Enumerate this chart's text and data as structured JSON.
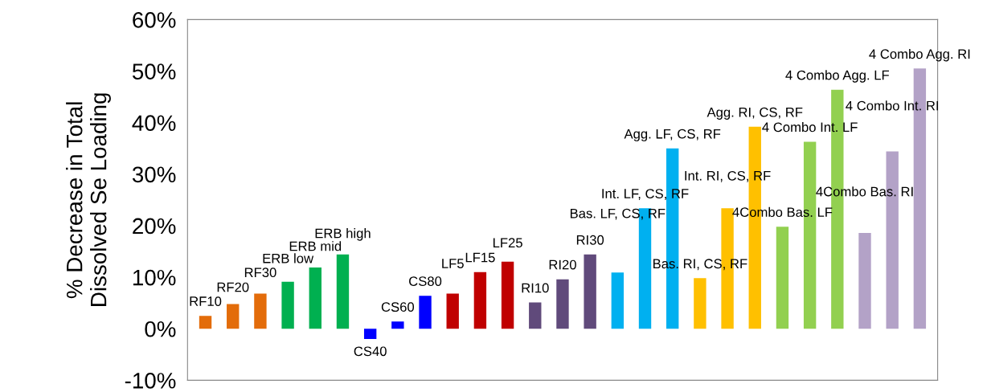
{
  "chart_data": {
    "type": "bar",
    "ylabel": "% Decrease in Total\nDissolved Se Loading",
    "categories": [
      "RF10",
      "RF20",
      "RF30",
      "ERB low",
      "ERB mid",
      "ERB high",
      "CS40",
      "CS60",
      "CS80",
      "LF5",
      "LF15",
      "LF25",
      "RI10",
      "RI20",
      "RI30",
      "Bas. LF, CS, RF",
      "Int. LF, CS, RF",
      "Agg. LF, CS, RF",
      "Bas. RI, CS, RF",
      "Int. RI, CS, RF",
      "Agg. RI, CS, RF",
      "4Combo Bas. LF",
      "4 Combo Int. LF",
      "4 Combo Agg. LF",
      "4Combo Bas. RI",
      "4 Combo Int. RI",
      "4 Combo Agg. RI"
    ],
    "values": [
      2.5,
      4.8,
      6.8,
      9.1,
      11.9,
      14.4,
      -2.0,
      1.4,
      6.4,
      6.8,
      11.0,
      13.0,
      5.1,
      9.6,
      14.4,
      10.9,
      23.4,
      35.0,
      9.8,
      23.4,
      39.2,
      19.8,
      36.3,
      46.4,
      18.6,
      34.4,
      50.5
    ],
    "colors": [
      "#e36c0a",
      "#e36c0a",
      "#e36c0a",
      "#00b050",
      "#00b050",
      "#00b050",
      "#0000ff",
      "#0000ff",
      "#0000ff",
      "#c00000",
      "#c00000",
      "#c00000",
      "#604a7b",
      "#604a7b",
      "#604a7b",
      "#00b0f0",
      "#00b0f0",
      "#00b0f0",
      "#ffc000",
      "#ffc000",
      "#ffc000",
      "#92d050",
      "#92d050",
      "#92d050",
      "#b3a2c7",
      "#b3a2c7",
      "#b3a2c7"
    ],
    "ylim": [
      -10,
      60
    ],
    "yticks": [
      {
        "value": -10,
        "label": "-10%"
      },
      {
        "value": 0,
        "label": "0%"
      },
      {
        "value": 10,
        "label": "10%"
      },
      {
        "value": 20,
        "label": "20%"
      },
      {
        "value": 30,
        "label": "30%"
      },
      {
        "value": 40,
        "label": "40%"
      },
      {
        "value": 50,
        "label": "50%"
      },
      {
        "value": 60,
        "label": "60%"
      }
    ],
    "tick_labels": "y",
    "grid": false
  }
}
